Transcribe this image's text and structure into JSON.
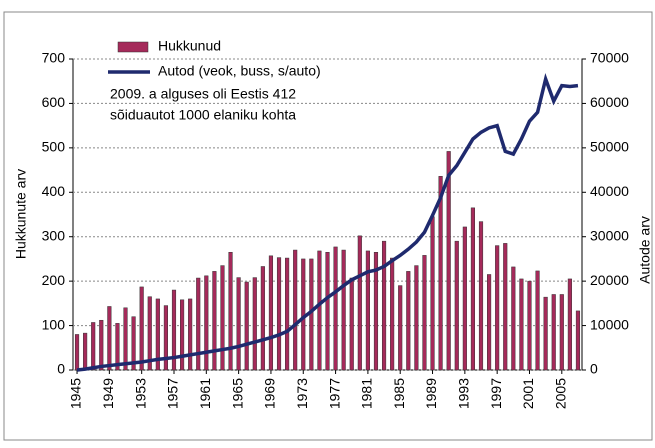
{
  "chart_data": {
    "type": "bar",
    "x": [
      1945,
      1946,
      1947,
      1948,
      1949,
      1950,
      1951,
      1952,
      1953,
      1954,
      1955,
      1956,
      1957,
      1958,
      1959,
      1960,
      1961,
      1962,
      1963,
      1964,
      1965,
      1966,
      1967,
      1968,
      1969,
      1970,
      1971,
      1972,
      1973,
      1974,
      1975,
      1976,
      1977,
      1978,
      1979,
      1980,
      1981,
      1982,
      1983,
      1984,
      1985,
      1986,
      1987,
      1988,
      1989,
      1990,
      1991,
      1992,
      1993,
      1994,
      1995,
      1996,
      1997,
      1998,
      1999,
      2000,
      2001,
      2002,
      2003,
      2004,
      2005,
      2006,
      2007
    ],
    "series": [
      {
        "name": "Hukkunud",
        "color": "#a52a5a",
        "values": [
          80,
          83,
          107,
          112,
          143,
          105,
          140,
          120,
          187,
          165,
          160,
          145,
          180,
          158,
          160,
          207,
          212,
          222,
          235,
          265,
          208,
          198,
          208,
          233,
          257,
          253,
          252,
          270,
          250,
          250,
          268,
          265,
          277,
          270,
          207,
          302,
          268,
          265,
          290,
          252,
          190,
          222,
          235,
          258,
          345,
          436,
          492,
          290,
          322,
          365,
          334,
          215,
          280,
          285,
          232,
          205,
          200,
          223,
          164,
          170,
          170,
          205,
          133
        ]
      },
      {
        "name": "Autod (veok, buss, s/auto)",
        "color": "#1f2a6e",
        "axis": "y2",
        "values": [
          0,
          200,
          500,
          800,
          1000,
          1200,
          1400,
          1600,
          1800,
          2100,
          2400,
          2600,
          2800,
          3100,
          3400,
          3700,
          4000,
          4300,
          4600,
          4900,
          5300,
          5800,
          6300,
          6800,
          7300,
          7900,
          8700,
          10200,
          11800,
          13200,
          14800,
          16300,
          17600,
          19000,
          20300,
          21200,
          22100,
          22500,
          23300,
          24600,
          25800,
          27200,
          28800,
          31000,
          34800,
          38800,
          43800,
          46000,
          49000,
          52000,
          53500,
          54500,
          55000,
          49200,
          48600,
          52000,
          56000,
          58000,
          65500,
          60500,
          64000,
          63800,
          64000
        ]
      }
    ],
    "xticks": [
      1945,
      1949,
      1953,
      1957,
      1961,
      1965,
      1969,
      1973,
      1977,
      1981,
      1985,
      1989,
      1993,
      1997,
      2001,
      2005
    ],
    "xlim": [
      1944.5,
      2007.5
    ],
    "ylim": [
      0,
      700
    ],
    "yticks": [
      0,
      100,
      200,
      300,
      400,
      500,
      600,
      700
    ],
    "y2lim": [
      0,
      70000
    ],
    "y2ticks": [
      0,
      10000,
      20000,
      30000,
      40000,
      50000,
      60000,
      70000
    ],
    "ylabel": "Hukkunute arv",
    "y2label": "Autode arv",
    "annotation": [
      "2009. a alguses oli Eestis 412",
      "sõiduautot 1000 elaniku kohta"
    ]
  }
}
